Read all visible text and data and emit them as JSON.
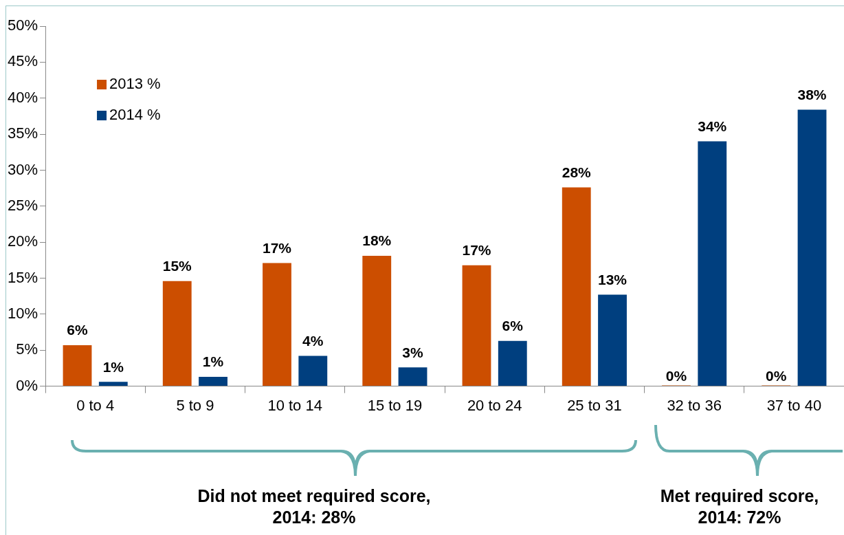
{
  "chart_data": {
    "type": "bar",
    "categories": [
      "0 to 4",
      "5 to 9",
      "10 to 14",
      "15 to 19",
      "20 to 24",
      "25 to 31",
      "32 to 36",
      "37 to 40"
    ],
    "series": [
      {
        "name": "2013 %",
        "color": "#cc4e00",
        "values": [
          5.7,
          14.6,
          17.1,
          18.1,
          16.8,
          27.6,
          0,
          0
        ],
        "value_labels": [
          "6%",
          "15%",
          "17%",
          "18%",
          "17%",
          "28%",
          "0%",
          "0%"
        ]
      },
      {
        "name": "2014 %",
        "color": "#003f7f",
        "values": [
          0.6,
          1.3,
          4.2,
          2.6,
          6.3,
          12.7,
          34.0,
          38.4
        ],
        "value_labels": [
          "1%",
          "1%",
          "4%",
          "3%",
          "6%",
          "13%",
          "34%",
          "38%"
        ]
      }
    ],
    "ylim": [
      0,
      50
    ],
    "yticks": [
      {
        "value": 0,
        "label": "0%"
      },
      {
        "value": 5,
        "label": "5%"
      },
      {
        "value": 10,
        "label": "10%"
      },
      {
        "value": 15,
        "label": "15%"
      },
      {
        "value": 20,
        "label": "20%"
      },
      {
        "value": 25,
        "label": "25%"
      },
      {
        "value": 30,
        "label": "30%"
      },
      {
        "value": 35,
        "label": "35%"
      },
      {
        "value": 40,
        "label": "40%"
      },
      {
        "value": 45,
        "label": "45%"
      },
      {
        "value": 50,
        "label": "50%"
      }
    ],
    "grid": false,
    "legend": "top left",
    "annotations": [
      "Did not meet required score, 2014: 28%",
      "Met required score, 2014: 72%"
    ]
  }
}
